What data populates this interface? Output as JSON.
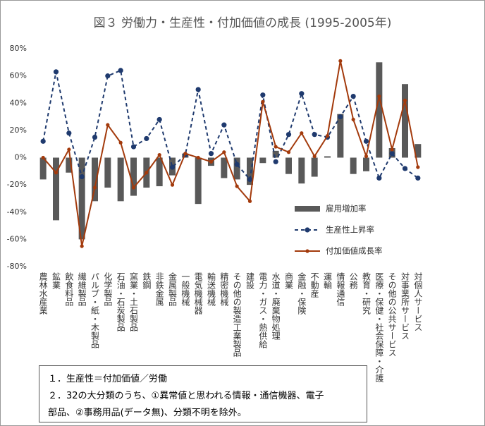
{
  "chart_data": {
    "type": "combo",
    "title": "図３ 労働力・生産性・付加価値の成長 (1995-2005年)",
    "categories": [
      "農林水産業",
      "鉱業",
      "飲食料品",
      "繊維製品",
      "パルプ・紙・木製品",
      "化学製品",
      "石油・石炭製品",
      "窯業・土石製品",
      "鉄鋼",
      "非鉄金属",
      "金属製品",
      "一般機械",
      "電気機械器",
      "輸送機械",
      "精密機械",
      "その他の製造工業製品",
      "建設",
      "電力・ガス・熱供給",
      "水道・廃棄物処理",
      "商業",
      "金融・保険",
      "不動産",
      "運輸",
      "情報通信",
      "公務",
      "教育・研究",
      "医療・保健・社会保障・介護",
      "その他の公共サービス",
      "対事業所サービス",
      "対個人サービス"
    ],
    "series": [
      {
        "name": "雇用増加率",
        "type": "bar",
        "color": "#595959",
        "values": [
          -16,
          -46,
          -11,
          -60,
          -32,
          -22,
          -32,
          -28,
          -22,
          -21,
          -13,
          3,
          -34,
          -6,
          -15,
          -16,
          -20,
          -4,
          5,
          -12,
          -19,
          -14,
          1,
          32,
          -12,
          -10,
          70,
          7,
          54,
          10
        ]
      },
      {
        "name": "生産性上昇率",
        "type": "line",
        "dash": true,
        "color": "#1f3a6e",
        "values": [
          12,
          63,
          18,
          -14,
          15,
          60,
          64,
          8,
          14,
          28,
          -7,
          2,
          50,
          3,
          24,
          -5,
          -16,
          46,
          -3,
          17,
          47,
          17,
          15,
          30,
          45,
          12,
          -15,
          3,
          -8,
          -15
        ]
      },
      {
        "name": "付加価値成長率",
        "type": "line",
        "dash": false,
        "color": "#a33a0c",
        "values": [
          0,
          -11,
          6,
          -65,
          -22,
          24,
          11,
          -22,
          -11,
          2,
          -20,
          3,
          0,
          -3,
          4,
          -21,
          -32,
          41,
          8,
          4,
          18,
          1,
          16,
          71,
          28,
          1,
          45,
          6,
          42,
          -7
        ]
      }
    ],
    "ylim": [
      -80,
      80
    ],
    "yticks": [
      {
        "value": -80,
        "label": "-80%"
      },
      {
        "value": -60,
        "label": "-60%"
      },
      {
        "value": -40,
        "label": "-40%"
      },
      {
        "value": -20,
        "label": "-20%"
      },
      {
        "value": 0,
        "label": "0%"
      },
      {
        "value": 20,
        "label": "20%"
      },
      {
        "value": 40,
        "label": "40%"
      },
      {
        "value": 60,
        "label": "60%"
      },
      {
        "value": 80,
        "label": "80%"
      }
    ],
    "notes": [
      "１．生産性＝付加価値／労働",
      "２．32の大分類のうち、①異常値と思われる情報・通信機器、電子",
      "部品、②事務用品(データ無)、分類不明を除外。"
    ]
  }
}
